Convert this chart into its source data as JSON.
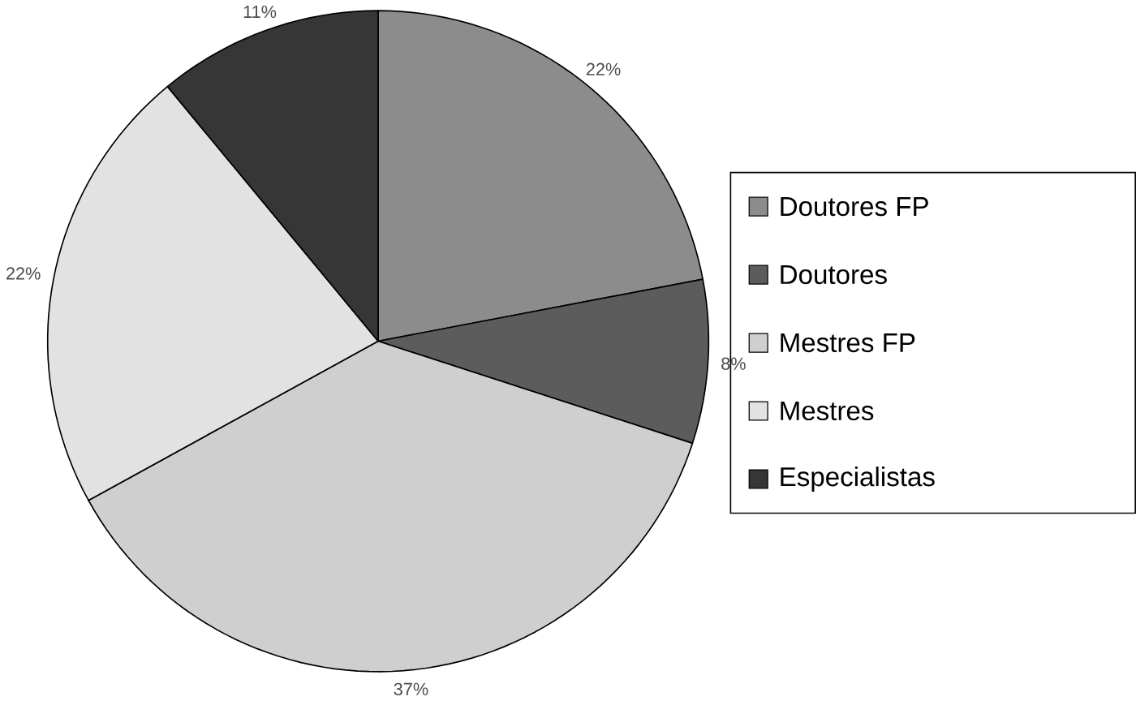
{
  "chart_data": {
    "type": "pie",
    "categories": [
      "Doutores FP",
      "Doutores",
      "Mestres FP",
      "Mestres",
      "Especialistas"
    ],
    "values": [
      22,
      8,
      37,
      22,
      11
    ],
    "value_labels": [
      "22%",
      "8%",
      "37%",
      "22%",
      "11%"
    ],
    "colors": [
      "#8c8c8c",
      "#5c5c5c",
      "#cfcfcf",
      "#e2e2e2",
      "#363636"
    ],
    "legend": "right"
  }
}
